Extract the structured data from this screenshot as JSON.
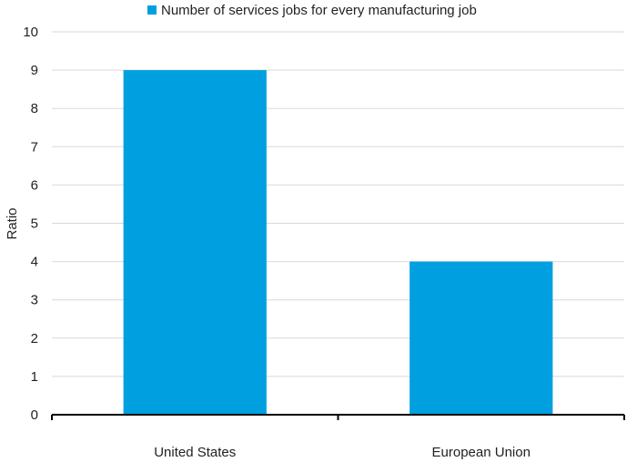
{
  "chart_data": {
    "type": "bar",
    "categories": [
      "United States",
      "European Union"
    ],
    "series": [
      {
        "name": "Number of services jobs for every manufacturing job",
        "values": [
          9,
          4
        ],
        "color": "#00A0E0"
      }
    ],
    "ylabel": "Ratio",
    "xlabel": "",
    "ylim": [
      0,
      10
    ],
    "yticks": [
      0,
      1,
      2,
      3,
      4,
      5,
      6,
      7,
      8,
      9,
      10
    ],
    "grid": true,
    "legend_position": "top-center"
  }
}
